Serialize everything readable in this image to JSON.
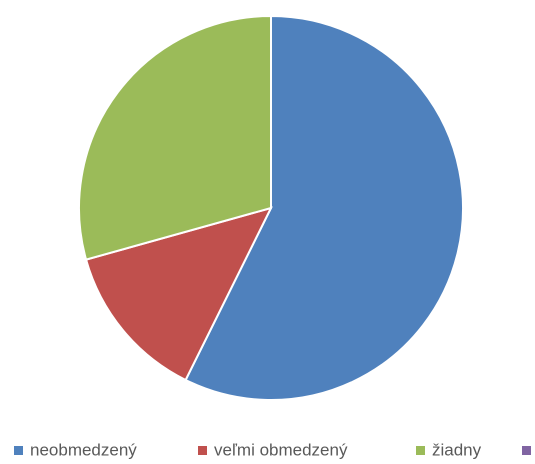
{
  "chart_data": {
    "type": "pie",
    "categories": [
      "neobmedzený",
      "veľmi obmedzený",
      "žiadny",
      null
    ],
    "values": [
      43,
      10,
      22,
      0
    ],
    "colors": [
      "#4f81bd",
      "#c0504d",
      "#9bbb59",
      "#8064a2"
    ],
    "legend": "bottom"
  }
}
